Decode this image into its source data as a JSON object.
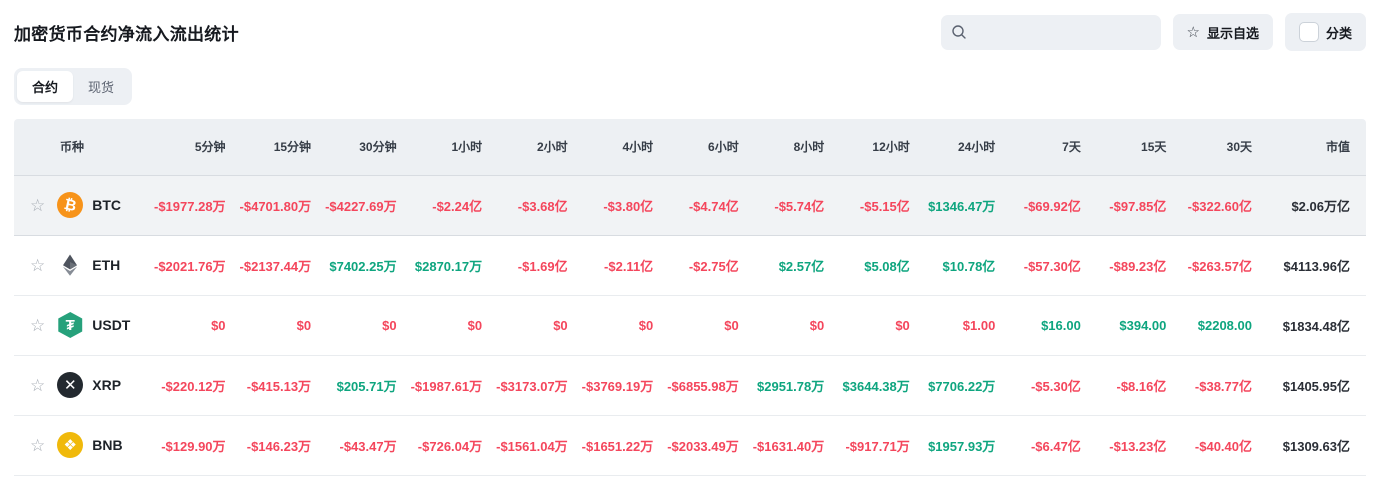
{
  "page": {
    "title": "加密货币合约净流入流出统计"
  },
  "toolbar": {
    "search_placeholder": "",
    "search_value": "",
    "favorites_label": "显示自选",
    "category_label": "分类",
    "category_checked": false
  },
  "icons": {
    "star": "☆",
    "search": "magnifier"
  },
  "tabs": [
    {
      "label": "合约",
      "active": true
    },
    {
      "label": "现货",
      "active": false
    }
  ],
  "colors": {
    "red": "#F4465C",
    "green": "#0EA57F",
    "cap": "#2A2E36"
  },
  "table": {
    "columns": [
      "币种",
      "5分钟",
      "15分钟",
      "30分钟",
      "1小时",
      "2小时",
      "4小时",
      "6小时",
      "8小时",
      "12小时",
      "24小时",
      "7天",
      "15天",
      "30天",
      "市值"
    ],
    "rows": [
      {
        "symbol": "BTC",
        "highlighted": true,
        "icon": {
          "name": "btc-icon",
          "shape": "circle",
          "bg": "#F7931A",
          "glyph": "₿",
          "tilt": true
        },
        "values": [
          {
            "text": "-$1977.28万",
            "color": "red"
          },
          {
            "text": "-$4701.80万",
            "color": "red"
          },
          {
            "text": "-$4227.69万",
            "color": "red"
          },
          {
            "text": "-$2.24亿",
            "color": "red"
          },
          {
            "text": "-$3.68亿",
            "color": "red"
          },
          {
            "text": "-$3.80亿",
            "color": "red"
          },
          {
            "text": "-$4.74亿",
            "color": "red"
          },
          {
            "text": "-$5.74亿",
            "color": "red"
          },
          {
            "text": "-$5.15亿",
            "color": "red"
          },
          {
            "text": "$1346.47万",
            "color": "green"
          },
          {
            "text": "-$69.92亿",
            "color": "red"
          },
          {
            "text": "-$97.85亿",
            "color": "red"
          },
          {
            "text": "-$322.60亿",
            "color": "red"
          }
        ],
        "market_cap": "$2.06万亿"
      },
      {
        "symbol": "ETH",
        "highlighted": false,
        "icon": {
          "name": "eth-icon",
          "shape": "eth"
        },
        "values": [
          {
            "text": "-$2021.76万",
            "color": "red"
          },
          {
            "text": "-$2137.44万",
            "color": "red"
          },
          {
            "text": "$7402.25万",
            "color": "green"
          },
          {
            "text": "$2870.17万",
            "color": "green"
          },
          {
            "text": "-$1.69亿",
            "color": "red"
          },
          {
            "text": "-$2.11亿",
            "color": "red"
          },
          {
            "text": "-$2.75亿",
            "color": "red"
          },
          {
            "text": "$2.57亿",
            "color": "green"
          },
          {
            "text": "$5.08亿",
            "color": "green"
          },
          {
            "text": "$10.78亿",
            "color": "green"
          },
          {
            "text": "-$57.30亿",
            "color": "red"
          },
          {
            "text": "-$89.23亿",
            "color": "red"
          },
          {
            "text": "-$263.57亿",
            "color": "red"
          }
        ],
        "market_cap": "$4113.96亿"
      },
      {
        "symbol": "USDT",
        "highlighted": false,
        "icon": {
          "name": "usdt-icon",
          "shape": "hexagon",
          "bg": "#26A17B",
          "glyph": "₮"
        },
        "values": [
          {
            "text": "$0",
            "color": "red"
          },
          {
            "text": "$0",
            "color": "red"
          },
          {
            "text": "$0",
            "color": "red"
          },
          {
            "text": "$0",
            "color": "red"
          },
          {
            "text": "$0",
            "color": "red"
          },
          {
            "text": "$0",
            "color": "red"
          },
          {
            "text": "$0",
            "color": "red"
          },
          {
            "text": "$0",
            "color": "red"
          },
          {
            "text": "$0",
            "color": "red"
          },
          {
            "text": "$1.00",
            "color": "red"
          },
          {
            "text": "$16.00",
            "color": "green"
          },
          {
            "text": "$394.00",
            "color": "green"
          },
          {
            "text": "$2208.00",
            "color": "green"
          }
        ],
        "market_cap": "$1834.48亿"
      },
      {
        "symbol": "XRP",
        "highlighted": false,
        "icon": {
          "name": "xrp-icon",
          "shape": "circle",
          "bg": "#23292F",
          "glyph": "✕"
        },
        "values": [
          {
            "text": "-$220.12万",
            "color": "red"
          },
          {
            "text": "-$415.13万",
            "color": "red"
          },
          {
            "text": "$205.71万",
            "color": "green"
          },
          {
            "text": "-$1987.61万",
            "color": "red"
          },
          {
            "text": "-$3173.07万",
            "color": "red"
          },
          {
            "text": "-$3769.19万",
            "color": "red"
          },
          {
            "text": "-$6855.98万",
            "color": "red"
          },
          {
            "text": "$2951.78万",
            "color": "green"
          },
          {
            "text": "$3644.38万",
            "color": "green"
          },
          {
            "text": "$7706.22万",
            "color": "green"
          },
          {
            "text": "-$5.30亿",
            "color": "red"
          },
          {
            "text": "-$8.16亿",
            "color": "red"
          },
          {
            "text": "-$38.77亿",
            "color": "red"
          }
        ],
        "market_cap": "$1405.95亿"
      },
      {
        "symbol": "BNB",
        "highlighted": false,
        "icon": {
          "name": "bnb-icon",
          "shape": "circle",
          "bg": "#F0B90B",
          "glyph": "❖"
        },
        "values": [
          {
            "text": "-$129.90万",
            "color": "red"
          },
          {
            "text": "-$146.23万",
            "color": "red"
          },
          {
            "text": "-$43.47万",
            "color": "red"
          },
          {
            "text": "-$726.04万",
            "color": "red"
          },
          {
            "text": "-$1561.04万",
            "color": "red"
          },
          {
            "text": "-$1651.22万",
            "color": "red"
          },
          {
            "text": "-$2033.49万",
            "color": "red"
          },
          {
            "text": "-$1631.40万",
            "color": "red"
          },
          {
            "text": "-$917.71万",
            "color": "red"
          },
          {
            "text": "$1957.93万",
            "color": "green"
          },
          {
            "text": "-$6.47亿",
            "color": "red"
          },
          {
            "text": "-$13.23亿",
            "color": "red"
          },
          {
            "text": "-$40.40亿",
            "color": "red"
          }
        ],
        "market_cap": "$1309.63亿"
      }
    ]
  }
}
